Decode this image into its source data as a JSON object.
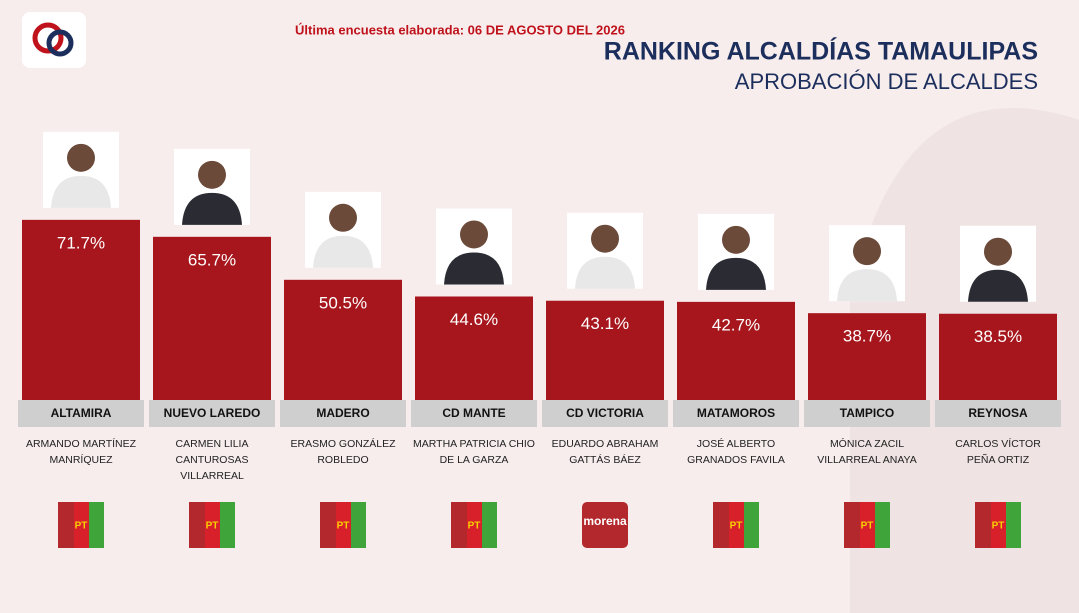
{
  "header": {
    "note": "Última encuesta elaborada: 06 DE AGOSTO DEL 2026",
    "title": "RANKING ALCALDÍAS TAMAULIPAS",
    "subtitle": "APROBACIÓN DE ALCALDES"
  },
  "chart_data": {
    "type": "bar",
    "color": "#a6161c",
    "categories": [
      "ALTAMIRA",
      "NUEVO LAREDO",
      "MADERO",
      "CD MANTE",
      "CD VICTORIA",
      "MATAMOROS",
      "TAMPICO",
      "REYNOSA"
    ],
    "values": [
      71.7,
      65.7,
      50.5,
      44.6,
      43.1,
      42.7,
      38.7,
      38.5
    ],
    "value_labels": [
      "71.7%",
      "65.7%",
      "50.5%",
      "44.6%",
      "43.1%",
      "42.7%",
      "38.7%",
      "38.5%"
    ],
    "ylim": [
      8,
      72
    ],
    "mayors": [
      [
        "ARMANDO MARTÍNEZ",
        "MANRÍQUEZ"
      ],
      [
        "CARMEN LILIA",
        "CANTUROSAS",
        "VILLARREAL"
      ],
      [
        "ERASMO GONZÁLEZ",
        "ROBLEDO"
      ],
      [
        "MARTHA PATRICIA CHIO",
        "DE LA GARZA"
      ],
      [
        "EDUARDO ABRAHAM",
        "GATTÁS BÁEZ"
      ],
      [
        "JOSÉ ALBERTO",
        "GRANADOS FAVILA"
      ],
      [
        "MÓNICA ZACIL",
        "VILLARREAL ANAYA"
      ],
      [
        "CARLOS VÍCTOR",
        "PEÑA ORTIZ"
      ]
    ],
    "parties": [
      "PT",
      "PT",
      "PT",
      "PT",
      "morena",
      "PT",
      "PT",
      "PT"
    ]
  }
}
